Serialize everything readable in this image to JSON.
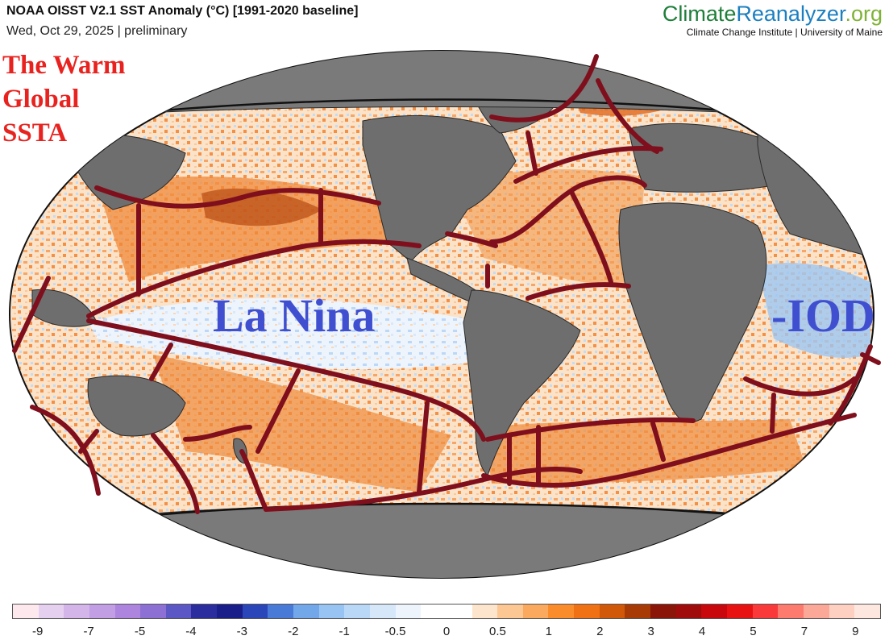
{
  "header": {
    "title": "NOAA OISST V2.1 SST Anomaly (°C) [1991-2020 baseline]",
    "date": "Wed, Oct 29, 2025 | preliminary"
  },
  "brand": {
    "part1": "Climate",
    "part2": "Reanalyzer",
    "part3": ".org",
    "subtitle": "Climate Change Institute | University of Maine"
  },
  "annotations": {
    "warm_line1": "The Warm",
    "warm_line2": "Global",
    "warm_line3": "SSTA",
    "la_nina": "La Nina",
    "iod": "-IOD"
  },
  "colors": {
    "land": "#6e6e6e",
    "outline_red": "#7f0f1c",
    "annot_red": "#e8231f",
    "annot_blue": "#3f4fd0"
  },
  "colorbar": {
    "swatches": [
      "#fde8ee",
      "#e6d0f0",
      "#d4b5ea",
      "#c29ee4",
      "#ad85de",
      "#8d70d4",
      "#5b57c4",
      "#2b2d9e",
      "#1a1e8a",
      "#2a46b8",
      "#4a7ad8",
      "#72a8ea",
      "#98c4f4",
      "#b9d8f7",
      "#d6e7fa",
      "#eef4fc",
      "#ffffff",
      "#ffffff",
      "#fde4cc",
      "#fdc794",
      "#fca960",
      "#fb8c2c",
      "#f07014",
      "#d05808",
      "#a83a06",
      "#8a1508",
      "#a00b0b",
      "#c8080c",
      "#e81212",
      "#fa3a3a",
      "#fc7a6e",
      "#fca899",
      "#fdd0c2",
      "#fde7df"
    ],
    "ticks": [
      "-9",
      "-7",
      "-5",
      "-4",
      "-3",
      "-2",
      "-1",
      "-0.5",
      "0",
      "0.5",
      "1",
      "2",
      "3",
      "4",
      "5",
      "7",
      "9"
    ]
  }
}
